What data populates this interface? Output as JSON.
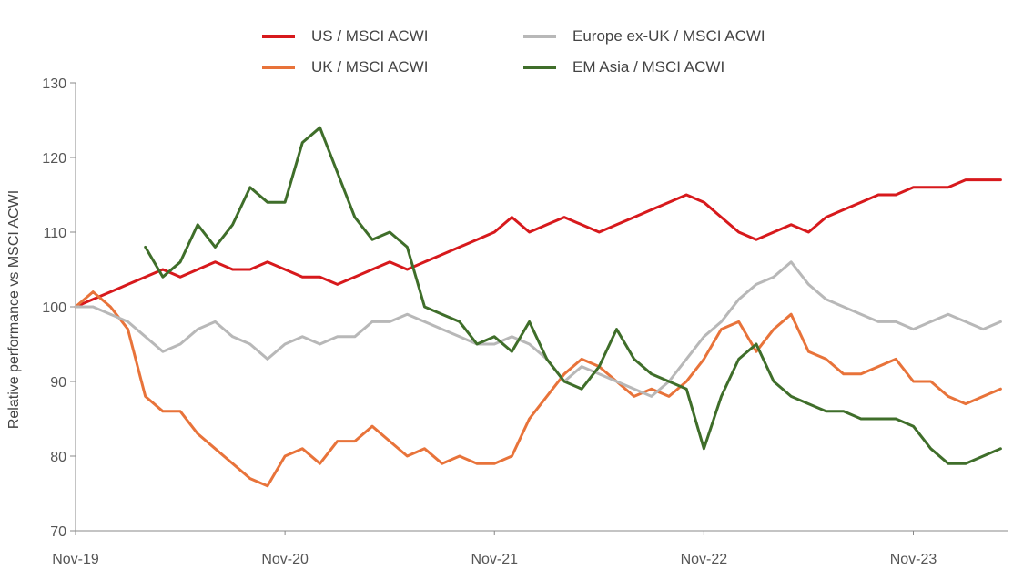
{
  "chart_data": {
    "type": "line",
    "title": "",
    "xlabel": "",
    "ylabel": "Relative performance vs MSCI ACWI",
    "ylim": [
      70,
      130
    ],
    "yticks": [
      70,
      80,
      90,
      100,
      110,
      120,
      130
    ],
    "xlim": [
      "2019-11",
      "2024-04"
    ],
    "xticks": [
      "Nov-19",
      "Nov-20",
      "Nov-21",
      "Nov-22",
      "Nov-23"
    ],
    "xtick_dates": [
      "2019-11",
      "2020-11",
      "2021-11",
      "2022-11",
      "2023-11"
    ],
    "grid": false,
    "legend": "top",
    "series": [
      {
        "name": "US / MSCI ACWI",
        "color": "#d7191c",
        "x": [
          "2019-11",
          "2019-12",
          "2020-01",
          "2020-02",
          "2020-03",
          "2020-04",
          "2020-05",
          "2020-06",
          "2020-07",
          "2020-08",
          "2020-09",
          "2020-10",
          "2020-11",
          "2020-12",
          "2021-01",
          "2021-02",
          "2021-03",
          "2021-04",
          "2021-05",
          "2021-06",
          "2021-07",
          "2021-08",
          "2021-09",
          "2021-10",
          "2021-11",
          "2021-12",
          "2022-01",
          "2022-02",
          "2022-03",
          "2022-04",
          "2022-05",
          "2022-06",
          "2022-07",
          "2022-08",
          "2022-09",
          "2022-10",
          "2022-11",
          "2022-12",
          "2023-01",
          "2023-02",
          "2023-03",
          "2023-04",
          "2023-05",
          "2023-06",
          "2023-07",
          "2023-08",
          "2023-09",
          "2023-10",
          "2023-11",
          "2023-12",
          "2024-01",
          "2024-02",
          "2024-03",
          "2024-04"
        ],
        "values": [
          100,
          101,
          102,
          103,
          104,
          105,
          104,
          105,
          106,
          105,
          105,
          106,
          105,
          104,
          104,
          103,
          104,
          105,
          106,
          105,
          106,
          107,
          108,
          109,
          110,
          112,
          110,
          111,
          112,
          111,
          110,
          111,
          112,
          113,
          114,
          115,
          114,
          112,
          110,
          109,
          110,
          111,
          110,
          112,
          113,
          114,
          115,
          115,
          116,
          116,
          116,
          117,
          117,
          117
        ]
      },
      {
        "name": "UK / MSCI ACWI",
        "color": "#e8733a",
        "x": [
          "2019-11",
          "2019-12",
          "2020-01",
          "2020-02",
          "2020-03",
          "2020-04",
          "2020-05",
          "2020-06",
          "2020-07",
          "2020-08",
          "2020-09",
          "2020-10",
          "2020-11",
          "2020-12",
          "2021-01",
          "2021-02",
          "2021-03",
          "2021-04",
          "2021-05",
          "2021-06",
          "2021-07",
          "2021-08",
          "2021-09",
          "2021-10",
          "2021-11",
          "2021-12",
          "2022-01",
          "2022-02",
          "2022-03",
          "2022-04",
          "2022-05",
          "2022-06",
          "2022-07",
          "2022-08",
          "2022-09",
          "2022-10",
          "2022-11",
          "2022-12",
          "2023-01",
          "2023-02",
          "2023-03",
          "2023-04",
          "2023-05",
          "2023-06",
          "2023-07",
          "2023-08",
          "2023-09",
          "2023-10",
          "2023-11",
          "2023-12",
          "2024-01",
          "2024-02",
          "2024-03",
          "2024-04"
        ],
        "values": [
          100,
          102,
          100,
          97,
          88,
          86,
          86,
          83,
          81,
          79,
          77,
          76,
          80,
          81,
          79,
          82,
          82,
          84,
          82,
          80,
          81,
          79,
          80,
          79,
          79,
          80,
          85,
          88,
          91,
          93,
          92,
          90,
          88,
          89,
          88,
          90,
          93,
          97,
          98,
          94,
          97,
          99,
          94,
          93,
          91,
          91,
          92,
          93,
          90,
          90,
          88,
          87,
          88,
          89
        ]
      },
      {
        "name": "Europe ex-UK / MSCI ACWI",
        "color": "#b8b8b8",
        "x": [
          "2019-11",
          "2019-12",
          "2020-01",
          "2020-02",
          "2020-03",
          "2020-04",
          "2020-05",
          "2020-06",
          "2020-07",
          "2020-08",
          "2020-09",
          "2020-10",
          "2020-11",
          "2020-12",
          "2021-01",
          "2021-02",
          "2021-03",
          "2021-04",
          "2021-05",
          "2021-06",
          "2021-07",
          "2021-08",
          "2021-09",
          "2021-10",
          "2021-11",
          "2021-12",
          "2022-01",
          "2022-02",
          "2022-03",
          "2022-04",
          "2022-05",
          "2022-06",
          "2022-07",
          "2022-08",
          "2022-09",
          "2022-10",
          "2022-11",
          "2022-12",
          "2023-01",
          "2023-02",
          "2023-03",
          "2023-04",
          "2023-05",
          "2023-06",
          "2023-07",
          "2023-08",
          "2023-09",
          "2023-10",
          "2023-11",
          "2023-12",
          "2024-01",
          "2024-02",
          "2024-03",
          "2024-04"
        ],
        "values": [
          100,
          100,
          99,
          98,
          96,
          94,
          95,
          97,
          98,
          96,
          95,
          93,
          95,
          96,
          95,
          96,
          96,
          98,
          98,
          99,
          98,
          97,
          96,
          95,
          95,
          96,
          95,
          93,
          90,
          92,
          91,
          90,
          89,
          88,
          90,
          93,
          96,
          98,
          101,
          103,
          104,
          106,
          103,
          101,
          100,
          99,
          98,
          98,
          97,
          98,
          99,
          98,
          97,
          98
        ]
      },
      {
        "name": "EM Asia / MSCI ACWI",
        "color": "#3f6e2a",
        "x": [
          "2020-03",
          "2020-04",
          "2020-05",
          "2020-06",
          "2020-07",
          "2020-08",
          "2020-09",
          "2020-10",
          "2020-11",
          "2020-12",
          "2021-01",
          "2021-02",
          "2021-03",
          "2021-04",
          "2021-05",
          "2021-06",
          "2021-07",
          "2021-08",
          "2021-09",
          "2021-10",
          "2021-11",
          "2021-12",
          "2022-01",
          "2022-02",
          "2022-03",
          "2022-04",
          "2022-05",
          "2022-06",
          "2022-07",
          "2022-08",
          "2022-09",
          "2022-10",
          "2022-11",
          "2022-12",
          "2023-01",
          "2023-02",
          "2023-03",
          "2023-04",
          "2023-05",
          "2023-06",
          "2023-07",
          "2023-08",
          "2023-09",
          "2023-10",
          "2023-11",
          "2023-12",
          "2024-01",
          "2024-02",
          "2024-03",
          "2024-04"
        ],
        "values": [
          108,
          104,
          106,
          111,
          108,
          111,
          116,
          114,
          114,
          122,
          124,
          118,
          112,
          109,
          110,
          108,
          100,
          99,
          98,
          95,
          96,
          94,
          98,
          93,
          90,
          89,
          92,
          97,
          93,
          91,
          90,
          89,
          81,
          88,
          93,
          95,
          90,
          88,
          87,
          86,
          86,
          85,
          85,
          85,
          84,
          81,
          79,
          79,
          80,
          81
        ]
      }
    ]
  }
}
